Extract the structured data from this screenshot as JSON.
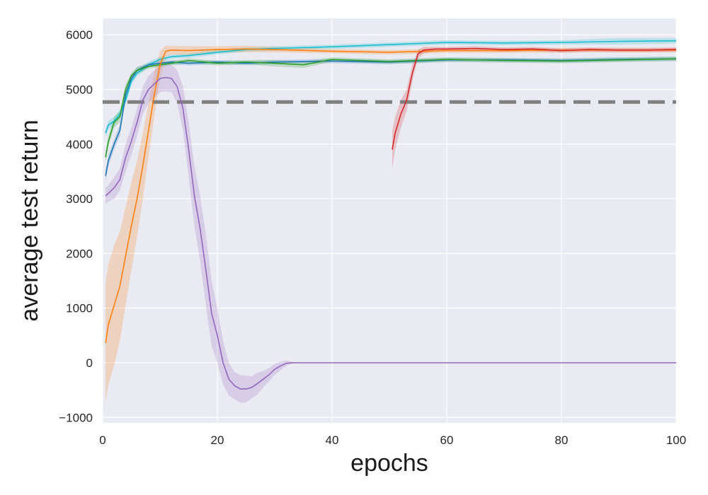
{
  "chart_data": {
    "type": "line",
    "title": "",
    "xlabel": "epochs",
    "ylabel": "average test return",
    "xlim": [
      0,
      100
    ],
    "ylim": [
      -1100,
      6300
    ],
    "x_ticks": [
      0,
      20,
      40,
      60,
      80,
      100
    ],
    "y_ticks": [
      -1000,
      0,
      1000,
      2000,
      3000,
      4000,
      5000,
      6000
    ],
    "grid": true,
    "legend": "none",
    "reference_line": {
      "y": 4770,
      "color": "#808080",
      "style": "dashed"
    },
    "series": [
      {
        "color": "#17becf",
        "x": [
          0.5,
          1,
          2,
          3,
          4,
          5,
          6,
          8,
          10,
          12,
          15,
          20,
          25,
          30,
          40,
          50,
          60,
          70,
          80,
          90,
          100
        ],
        "values": [
          4200,
          4350,
          4420,
          4550,
          4800,
          5150,
          5300,
          5450,
          5550,
          5600,
          5620,
          5680,
          5730,
          5750,
          5780,
          5820,
          5860,
          5850,
          5860,
          5880,
          5890
        ],
        "band": [
          80,
          80,
          80,
          80,
          80,
          60,
          60,
          50,
          50,
          40,
          40,
          40,
          40,
          40,
          40,
          40,
          40,
          40,
          40,
          60,
          50
        ]
      },
      {
        "color": "#1f77b4",
        "x": [
          0.5,
          1,
          2,
          3,
          4,
          5,
          6,
          8,
          10,
          12,
          15,
          20,
          25,
          30,
          40,
          50,
          60,
          70,
          80,
          90,
          100
        ],
        "values": [
          3420,
          3700,
          4000,
          4250,
          4900,
          5200,
          5350,
          5450,
          5480,
          5500,
          5480,
          5500,
          5480,
          5500,
          5520,
          5500,
          5540,
          5540,
          5530,
          5550,
          5560
        ],
        "band": [
          100,
          100,
          100,
          100,
          100,
          60,
          60,
          40,
          40,
          40,
          40,
          40,
          40,
          40,
          40,
          40,
          40,
          40,
          40,
          40,
          40
        ]
      },
      {
        "color": "#2ca02c",
        "x": [
          0.5,
          1,
          2,
          3,
          4,
          5,
          6,
          8,
          10,
          12,
          15,
          20,
          25,
          30,
          35,
          40,
          50,
          60,
          70,
          80,
          90,
          100
        ],
        "values": [
          3760,
          4050,
          4400,
          4500,
          5000,
          5250,
          5350,
          5420,
          5450,
          5480,
          5530,
          5480,
          5500,
          5480,
          5450,
          5550,
          5510,
          5550,
          5530,
          5520,
          5540,
          5560
        ],
        "band": [
          100,
          100,
          100,
          100,
          100,
          60,
          60,
          40,
          40,
          40,
          40,
          40,
          40,
          60,
          60,
          40,
          40,
          40,
          40,
          40,
          40,
          40
        ]
      },
      {
        "color": "#ff7f0e",
        "x": [
          0.5,
          1,
          2,
          3,
          4,
          5,
          6,
          7,
          8,
          9,
          10,
          11,
          12,
          15,
          20,
          25,
          30,
          40,
          50,
          60,
          70,
          80,
          90,
          100
        ],
        "values": [
          360,
          700,
          1050,
          1400,
          1950,
          2500,
          3000,
          3600,
          4250,
          4900,
          5450,
          5700,
          5720,
          5710,
          5730,
          5740,
          5730,
          5700,
          5680,
          5710,
          5710,
          5720,
          5720,
          5720
        ],
        "band": [
          1100,
          1100,
          1100,
          1000,
          900,
          800,
          700,
          600,
          500,
          400,
          250,
          100,
          80,
          80,
          60,
          60,
          50,
          40,
          40,
          40,
          40,
          40,
          40,
          40
        ]
      },
      {
        "color": "#d62728",
        "x": [
          50.5,
          51,
          52,
          53,
          54,
          55,
          56,
          58,
          60,
          65,
          70,
          75,
          80,
          85,
          90,
          95,
          100
        ],
        "values": [
          3900,
          4200,
          4550,
          4800,
          5300,
          5650,
          5720,
          5740,
          5740,
          5750,
          5730,
          5740,
          5710,
          5730,
          5720,
          5720,
          5730
        ],
        "band": [
          350,
          300,
          250,
          200,
          150,
          80,
          60,
          40,
          40,
          40,
          40,
          40,
          40,
          40,
          40,
          40,
          40
        ]
      },
      {
        "color": "#9467bd",
        "x": [
          0.5,
          1,
          2,
          3,
          4,
          5,
          6,
          7,
          8,
          9,
          10,
          11,
          12,
          13,
          14,
          15,
          16,
          17,
          18,
          19,
          20,
          21,
          22,
          23,
          24,
          25,
          26,
          27,
          28,
          29,
          30,
          31,
          32,
          33,
          34,
          35,
          40,
          50,
          60,
          70,
          80,
          90,
          100
        ],
        "values": [
          3050,
          3100,
          3200,
          3350,
          3750,
          4050,
          4400,
          4800,
          5000,
          5100,
          5200,
          5220,
          5200,
          5050,
          4650,
          3900,
          3050,
          2450,
          1700,
          900,
          500,
          0,
          -300,
          -420,
          -480,
          -480,
          -450,
          -380,
          -300,
          -220,
          -120,
          -60,
          -10,
          0,
          0,
          0,
          0,
          0,
          0,
          0,
          0,
          0,
          0
        ],
        "band": [
          150,
          150,
          200,
          200,
          250,
          250,
          250,
          250,
          250,
          250,
          250,
          250,
          250,
          300,
          400,
          500,
          550,
          600,
          650,
          600,
          500,
          400,
          300,
          250,
          250,
          250,
          200,
          200,
          150,
          120,
          100,
          80,
          50,
          20,
          0,
          0,
          0,
          0,
          0,
          0,
          0,
          0,
          0
        ]
      }
    ]
  }
}
